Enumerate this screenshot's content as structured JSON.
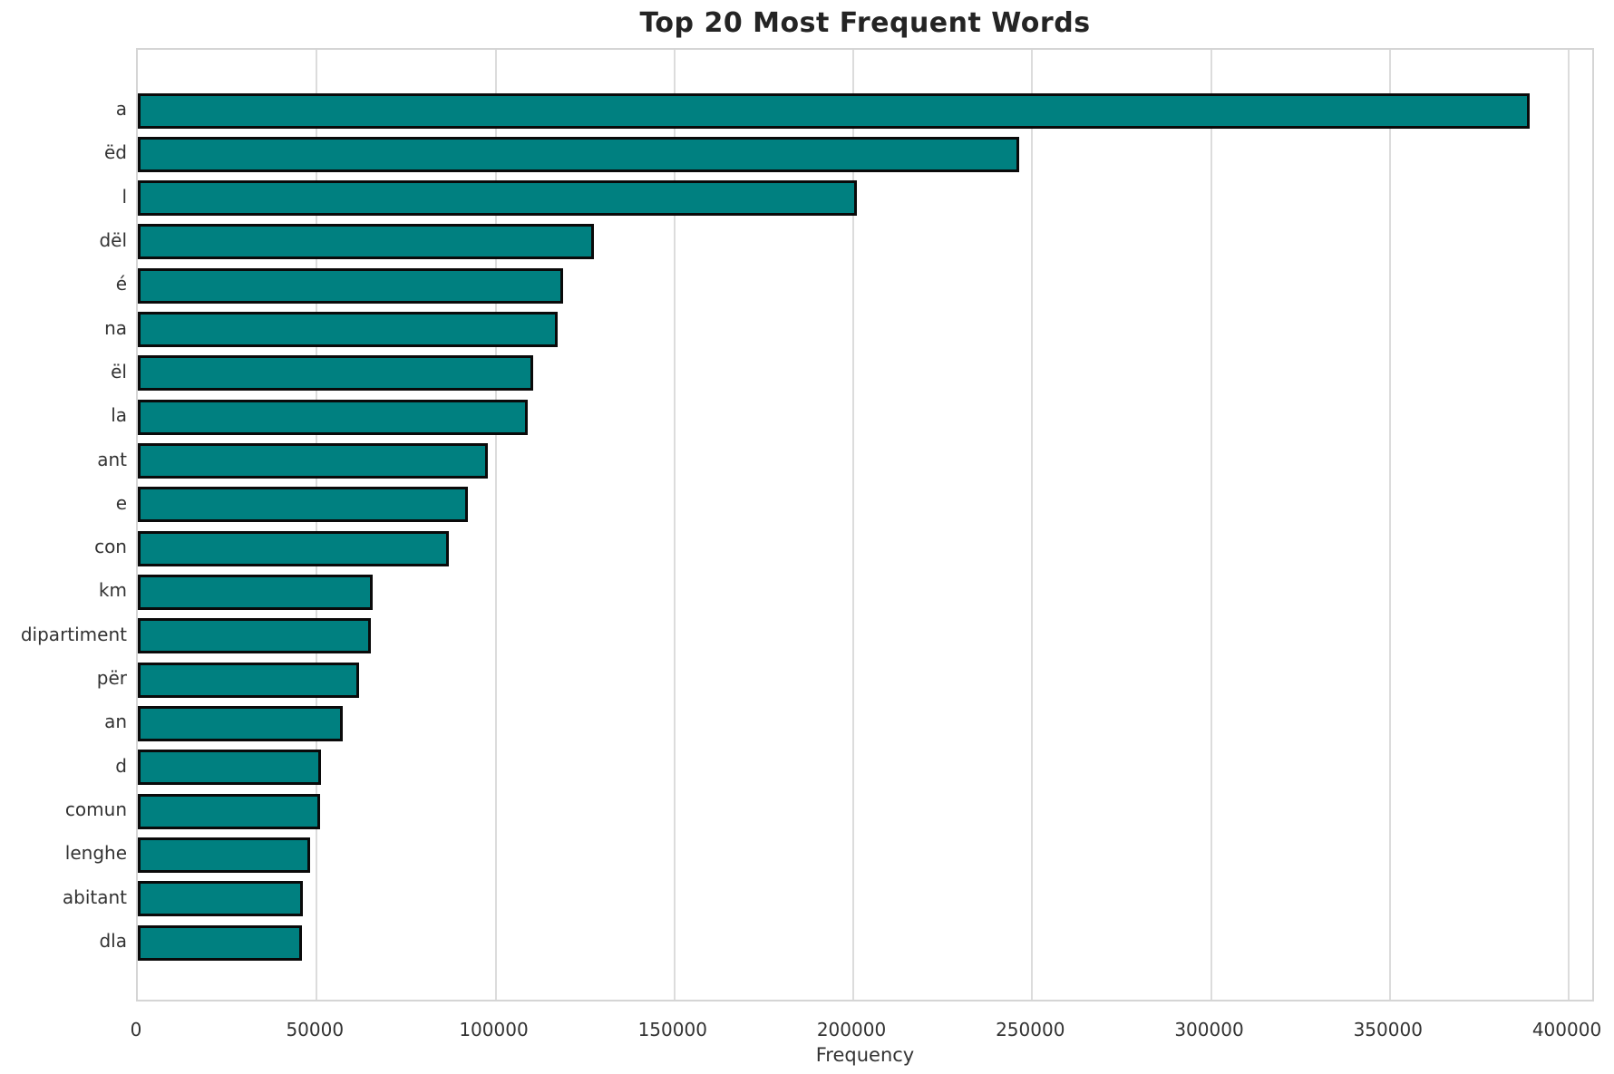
{
  "chart_data": {
    "type": "bar",
    "orientation": "horizontal",
    "title": "Top 20 Most Frequent Words",
    "xlabel": "Frequency",
    "ylabel": "",
    "categories": [
      "a",
      "ëd",
      "l",
      "dël",
      "é",
      "na",
      "ël",
      "la",
      "ant",
      "e",
      "con",
      "km",
      "dipartiment",
      "për",
      "an",
      "d",
      "comun",
      "lenghe",
      "abitant",
      "dla"
    ],
    "values": [
      389000,
      246500,
      201000,
      127500,
      119000,
      117400,
      110500,
      109000,
      97800,
      92300,
      87000,
      65700,
      65100,
      61900,
      57300,
      51200,
      51000,
      48200,
      46100,
      45900
    ],
    "x_ticks": [
      0,
      50000,
      100000,
      150000,
      200000,
      250000,
      300000,
      350000,
      400000
    ],
    "xlim": [
      0,
      407600
    ],
    "grid": true,
    "legend": false,
    "axisbelow": true,
    "bar_color": "#008080",
    "bar_edge_color": "#0a0a0a",
    "gridline_color": "#dcdcdc",
    "background_color": "#ffffff",
    "text_color": "#333333"
  }
}
